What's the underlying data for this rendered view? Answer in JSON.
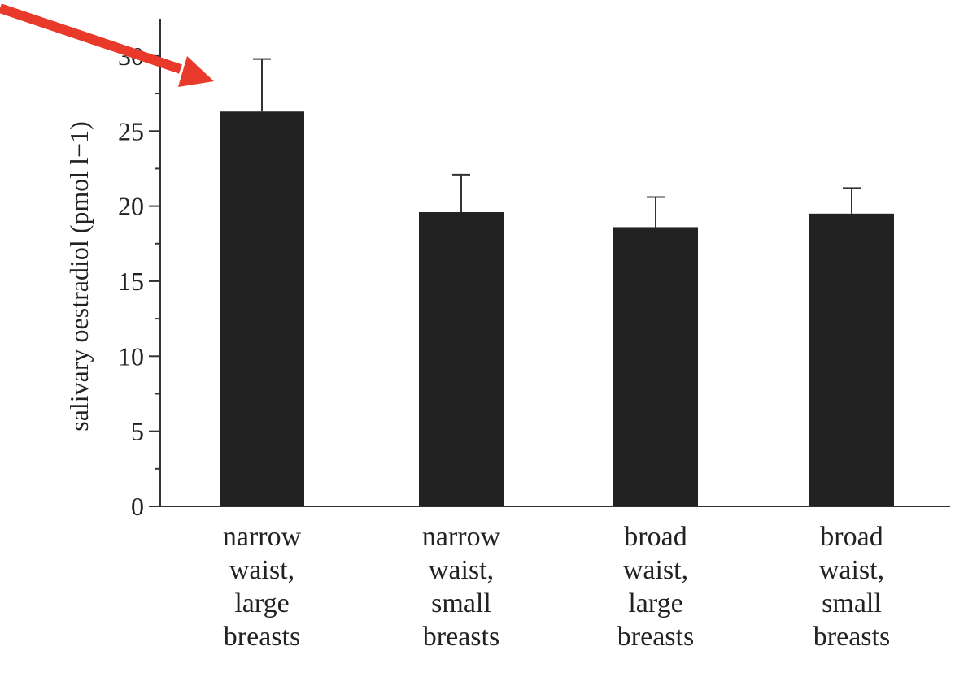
{
  "chart_data": {
    "type": "bar",
    "title": "",
    "xlabel": "",
    "ylabel": "salivary oestradiol (pmol l−1)",
    "ylim": [
      0,
      32
    ],
    "yticks": [
      0,
      5,
      10,
      15,
      20,
      25,
      30
    ],
    "categories": [
      [
        "narrow",
        "waist,",
        "large",
        "breasts"
      ],
      [
        "narrow",
        "waist,",
        "small",
        "breasts"
      ],
      [
        "broad",
        "waist,",
        "large",
        "breasts"
      ],
      [
        "broad",
        "waist,",
        "small",
        "breasts"
      ]
    ],
    "values": [
      26.3,
      19.6,
      18.6,
      19.5
    ],
    "error_upper": [
      29.8,
      22.1,
      20.6,
      21.2
    ],
    "bar_color": "#222222",
    "grid": false,
    "annotation": {
      "type": "arrow",
      "color": "#e8392a",
      "points_to": "narrow waist, large breasts"
    }
  }
}
